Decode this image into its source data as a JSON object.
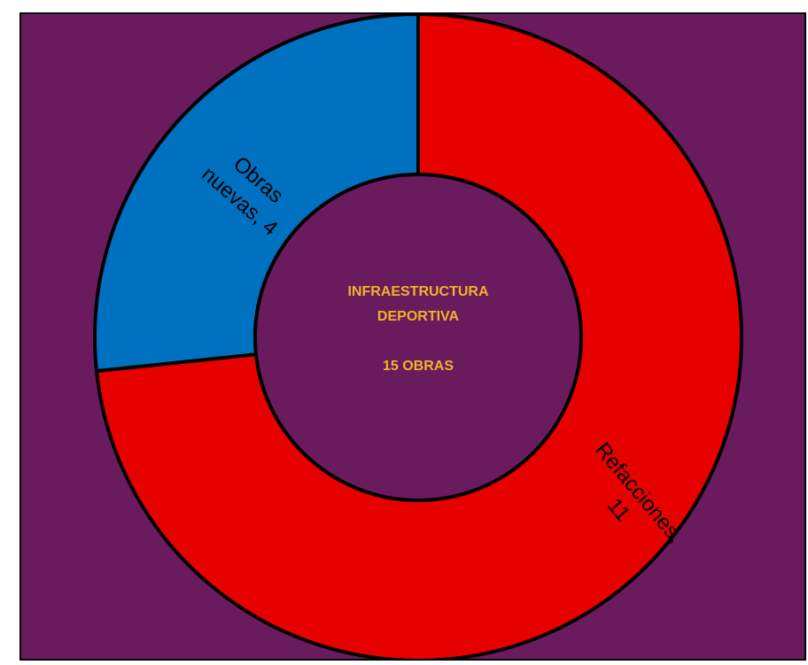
{
  "chart_data": {
    "type": "pie",
    "donut": true,
    "title": "",
    "center_text": [
      "INFRAESTRUCTURA",
      "DEPORTIVA",
      "",
      "15 OBRAS"
    ],
    "slices": [
      {
        "label": "Obras nuevas",
        "value": 4,
        "color": "#0070c0",
        "label_lines": [
          "Obras",
          "nuevas, 4"
        ]
      },
      {
        "label": "Refacciones",
        "value": 11,
        "color": "#e60000",
        "label_lines": [
          "Refacciones,",
          "11"
        ]
      }
    ],
    "total": 15,
    "start": "top",
    "direction": "counter-clockwise",
    "background_color": "#6a1b5e",
    "center_text_color": "#f2b227",
    "label_color": "#000000",
    "stroke_color": "#000000",
    "legend": "none"
  }
}
